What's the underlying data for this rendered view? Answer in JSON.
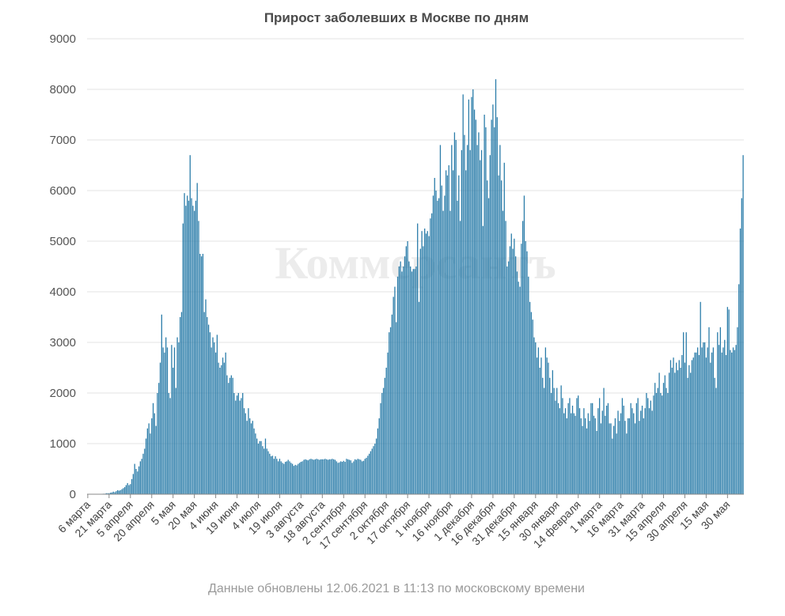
{
  "chart_data": {
    "type": "bar",
    "title": "Прирост заболевших в Москве по дням",
    "ylim": [
      0,
      9000
    ],
    "y_ticks": [
      "0",
      "1000",
      "2000",
      "3000",
      "4000",
      "5000",
      "6000",
      "7000",
      "8000",
      "9000"
    ],
    "x_tick_labels": [
      "6 марта",
      "21 марта",
      "5 апреля",
      "20 апреля",
      "5 мая",
      "20 мая",
      "4 июня",
      "19 июня",
      "4 июля",
      "19 июля",
      "3 августа",
      "18 августа",
      "2 сентября",
      "17 сентября",
      "2 октября",
      "17 октября",
      "1 ноября",
      "16 ноября",
      "1 декабря",
      "16 декабря",
      "31 декабря",
      "15 января",
      "30 января",
      "14 февраля",
      "1 марта",
      "16 марта",
      "31 марта",
      "15 апреля",
      "30 апреля",
      "15 мая",
      "30 мая"
    ],
    "grid": true,
    "bar_color": "#2a7ca9",
    "series": [
      {
        "values": [
          1,
          1,
          2,
          2,
          3,
          3,
          3,
          5,
          5,
          7,
          8,
          10,
          10,
          20,
          20,
          20,
          30,
          35,
          50,
          40,
          60,
          80,
          70,
          80,
          100,
          120,
          140,
          180,
          220,
          180,
          200,
          300,
          400,
          600,
          500,
          450,
          550,
          650,
          700,
          800,
          900,
          1100,
          1300,
          1400,
          1200,
          1500,
          1800,
          1600,
          1350,
          2000,
          2200,
          2600,
          3550,
          2900,
          2800,
          3100,
          2900,
          2000,
          1900,
          2950,
          2500,
          2900,
          2100,
          3100,
          3000,
          3500,
          3600,
          5350,
          5950,
          5700,
          5900,
          5800,
          6700,
          5850,
          5700,
          5600,
          5800,
          6150,
          5400,
          4750,
          4700,
          4750,
          3600,
          3850,
          3500,
          3350,
          3200,
          2900,
          3100,
          3000,
          2800,
          3150,
          2600,
          2500,
          2550,
          2700,
          2600,
          2800,
          2350,
          2200,
          2300,
          2350,
          2300,
          2000,
          1850,
          1950,
          2000,
          1850,
          1900,
          2000,
          1700,
          1600,
          1450,
          1700,
          1500,
          1400,
          1450,
          1300,
          1200,
          1100,
          1000,
          1050,
          1050,
          950,
          900,
          1100,
          900,
          850,
          800,
          750,
          760,
          700,
          750,
          700,
          650,
          700,
          650,
          620,
          600,
          640,
          650,
          680,
          650,
          620,
          600,
          560,
          580,
          570,
          600,
          620,
          640,
          650,
          680,
          690,
          680,
          670,
          690,
          700,
          690,
          680,
          690,
          700,
          690,
          680,
          690,
          690,
          690,
          700,
          690,
          680,
          690,
          690,
          700,
          690,
          680,
          650,
          620,
          630,
          650,
          640,
          660,
          640,
          700,
          690,
          680,
          670,
          620,
          650,
          690,
          680,
          700,
          690,
          680,
          650,
          660,
          700,
          720,
          760,
          800,
          850,
          900,
          950,
          1000,
          1100,
          1300,
          1500,
          1800,
          2000,
          2100,
          2300,
          2500,
          2800,
          3200,
          3300,
          3550,
          3900,
          4100,
          3400,
          4300,
          4500,
          4600,
          4400,
          4500,
          4700,
          4900,
          5000,
          4600,
          4500,
          4400,
          4450,
          4450,
          4500,
          5350,
          3800,
          4850,
          5200,
          4900,
          5250,
          5150,
          5200,
          5100,
          5450,
          5550,
          5900,
          6250,
          6000,
          5800,
          5850,
          6900,
          6100,
          5600,
          5900,
          6400,
          6300,
          6500,
          5600,
          6900,
          6400,
          7150,
          7000,
          5800,
          6300,
          5400,
          6800,
          7900,
          7100,
          6400,
          6900,
          7800,
          6800,
          7850,
          8000,
          7600,
          7400,
          6900,
          7150,
          6600,
          6800,
          5300,
          7500,
          7250,
          6200,
          5850,
          6700,
          7400,
          7700,
          7250,
          8200,
          7450,
          6300,
          6900,
          6200,
          5600,
          6550,
          5400,
          4500,
          4600,
          4900,
          5150,
          4850,
          5050,
          4700,
          4400,
          4200,
          4100,
          4950,
          5400,
          5900,
          5000,
          4800,
          4300,
          3800,
          3600,
          3450,
          3100,
          3000,
          2700,
          2900,
          2500,
          2700,
          2300,
          2100,
          2900,
          2700,
          2600,
          2300,
          2000,
          2450,
          2100,
          1850,
          2100,
          1800,
          1700,
          2150,
          1900,
          1600,
          1700,
          1500,
          1800,
          1900,
          1600,
          1750,
          1600,
          1550,
          1900,
          1950,
          1700,
          1500,
          1350,
          1700,
          1500,
          1300,
          1600,
          1450,
          1800,
          1800,
          1550,
          1500,
          1250,
          1700,
          1900,
          1400,
          1650,
          2100,
          1550,
          1750,
          1800,
          1400,
          1400,
          1100,
          1350,
          1500,
          1200,
          1650,
          1450,
          1600,
          1900,
          1750,
          1450,
          1200,
          1500,
          1500,
          1800,
          1700,
          1600,
          1400,
          1800,
          1900,
          1450,
          1650,
          1750,
          1500,
          1700,
          2000,
          1900,
          1700,
          1850,
          1650,
          1950,
          2200,
          2000,
          2100,
          2400,
          2000,
          1950,
          2200,
          2350,
          2100,
          2000,
          2400,
          2650,
          2500,
          2700,
          2400,
          2600,
          2450,
          2650,
          2500,
          2750,
          3200,
          2600,
          3200,
          2300,
          2550,
          2400,
          2650,
          2700,
          2800,
          2800,
          2900,
          2750,
          3800,
          2900,
          3000,
          3000,
          2700,
          2900,
          3300,
          2600,
          2800,
          2900,
          2300,
          2100,
          3200,
          2950,
          3300,
          2800,
          2900,
          3050,
          2750,
          3700,
          3650,
          2850,
          2800,
          2900,
          2850,
          2950,
          3300,
          4150,
          5250,
          5850,
          6700
        ]
      }
    ]
  },
  "footer": "Данные обновлены 12.06.2021 в 11:13 по московскому времени",
  "watermark": "Коммерсантъ"
}
